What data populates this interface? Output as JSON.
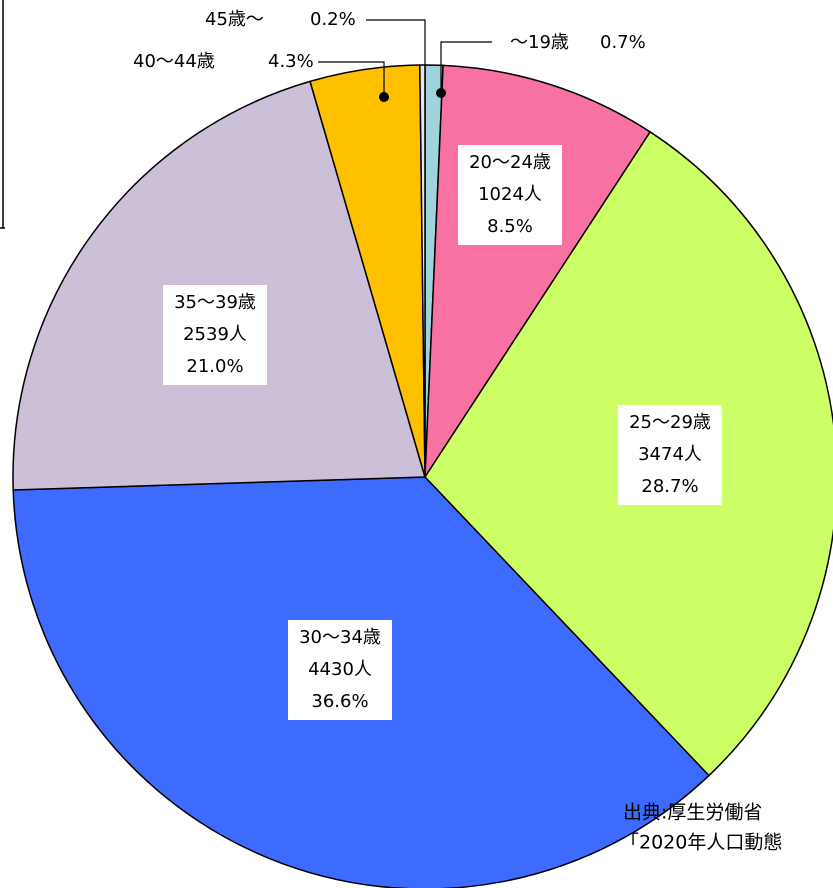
{
  "chart_data": {
    "type": "pie",
    "categories": [
      "〜19歳",
      "20〜24歳",
      "25〜29歳",
      "30〜34歳",
      "35〜39歳",
      "40〜44歳",
      "45歳〜"
    ],
    "values": [
      0.7,
      8.5,
      28.7,
      36.6,
      21.0,
      4.3,
      0.2
    ],
    "value_labels": [
      "0.7%",
      "8.5%",
      "28.7%",
      "36.6%",
      "21.0%",
      "4.3%",
      "0.2%"
    ],
    "counts": [
      null,
      1024,
      3474,
      4430,
      2539,
      null,
      null
    ],
    "count_labels": [
      null,
      "1024人",
      "3474人",
      "4430人",
      "2539人",
      null,
      null
    ],
    "colors": [
      "#9fd3de",
      "#f772a3",
      "#ccff66",
      "#3d6bff",
      "#cbc0d8",
      "#ffc000",
      "#e8e8e8"
    ],
    "source": [
      "出典:厚生労働省",
      "「2020年人口動態"
    ]
  }
}
